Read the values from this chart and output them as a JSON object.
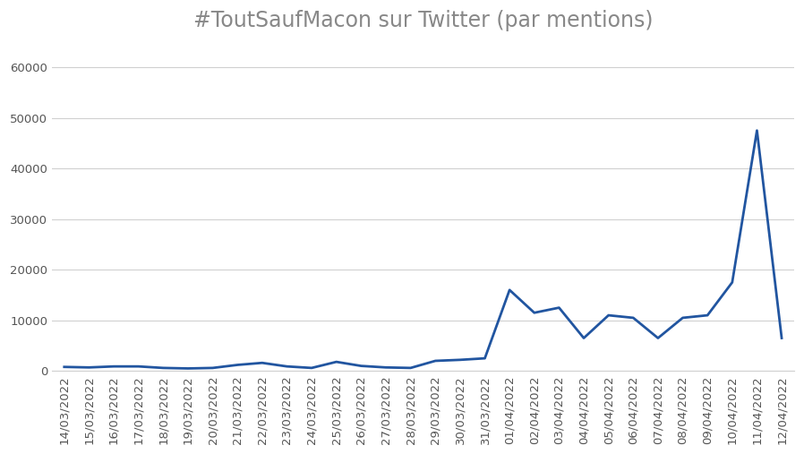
{
  "title": "#ToutSaufMacon sur Twitter (par mentions)",
  "line_color": "#2155a0",
  "background_color": "#ffffff",
  "grid_color": "#d0d0d0",
  "dates": [
    "14/03/2022",
    "15/03/2022",
    "16/03/2022",
    "17/03/2022",
    "18/03/2022",
    "19/03/2022",
    "20/03/2022",
    "21/03/2022",
    "22/03/2022",
    "23/03/2022",
    "24/03/2022",
    "25/03/2022",
    "26/03/2022",
    "27/03/2022",
    "28/03/2022",
    "29/03/2022",
    "30/03/2022",
    "31/03/2022",
    "01/04/2022",
    "02/04/2022",
    "03/04/2022",
    "04/04/2022",
    "05/04/2022",
    "06/04/2022",
    "07/04/2022",
    "08/04/2022",
    "09/04/2022",
    "10/04/2022",
    "11/04/2022",
    "12/04/2022"
  ],
  "values": [
    800,
    700,
    900,
    900,
    600,
    500,
    600,
    1200,
    1600,
    900,
    600,
    1800,
    1000,
    700,
    600,
    2000,
    2200,
    2500,
    16000,
    11500,
    12500,
    6500,
    11000,
    10500,
    6500,
    10500,
    11000,
    17500,
    47500,
    6500
  ],
  "ylim": [
    0,
    65000
  ],
  "yticks": [
    0,
    10000,
    20000,
    30000,
    40000,
    50000,
    60000
  ],
  "ytick_labels": [
    "0",
    "10000",
    "20000",
    "30000",
    "40000",
    "50000",
    "60000"
  ],
  "title_fontsize": 17,
  "title_color": "#888888",
  "tick_fontsize": 9.5,
  "line_width": 2.0
}
